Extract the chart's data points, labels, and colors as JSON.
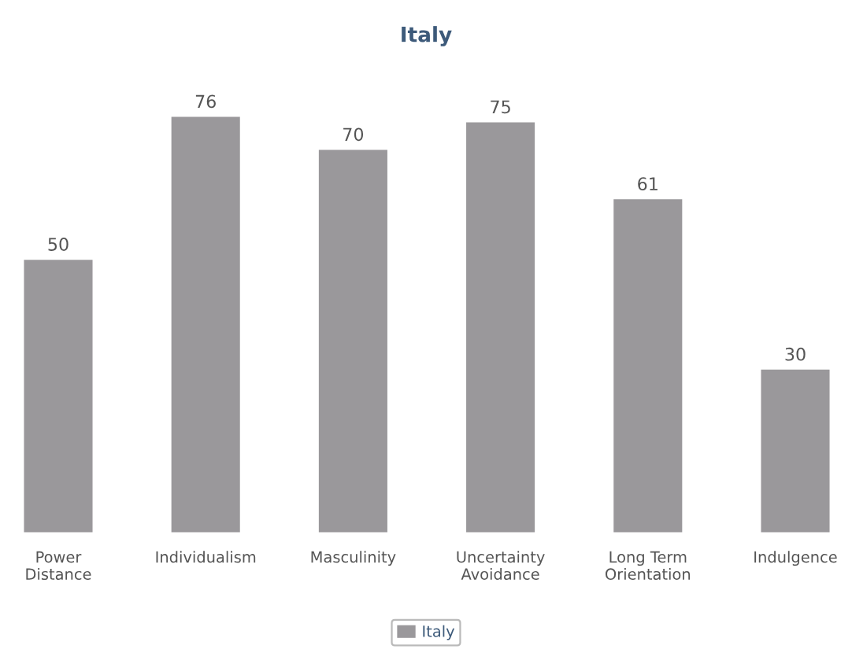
{
  "chart_data": {
    "type": "bar",
    "title": "Italy",
    "categories": [
      "Power\nDistance",
      "Individualism",
      "Masculinity",
      "Uncertainty\nAvoidance",
      "Long Term\nOrientation",
      "Indulgence"
    ],
    "series": [
      {
        "name": "Italy",
        "color": "#9a989b",
        "values": [
          50,
          76,
          70,
          75,
          61,
          30
        ]
      }
    ],
    "data_labels": true,
    "legend": "bottom",
    "grid": false,
    "tick_labels": "x"
  }
}
